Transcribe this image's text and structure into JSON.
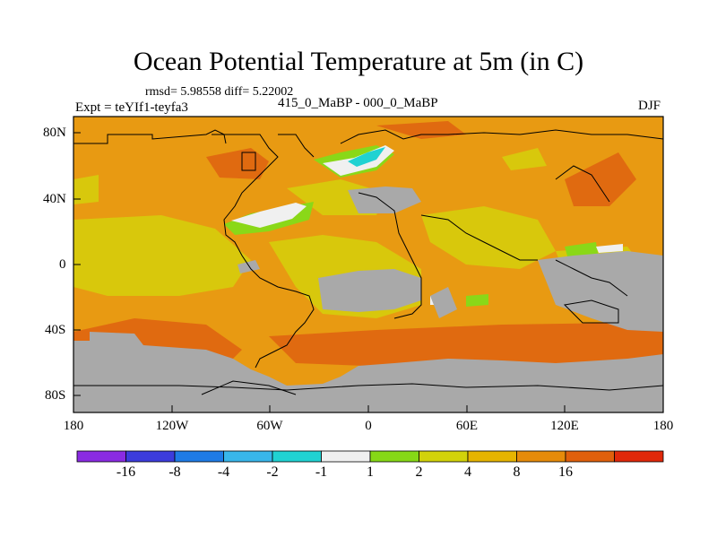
{
  "title": "Ocean Potential Temperature at 5m (in C)",
  "stats": "rmsd= 5.98558 diff= 5.22002",
  "experiment": "Expt = teYIf1-teyfa3",
  "period": "415_0_MaBP - 000_0_MaBP",
  "season": "DJF",
  "map": {
    "y_ticks": [
      "80N",
      "40N",
      "0",
      "40S",
      "80S"
    ],
    "x_ticks": [
      "180",
      "120W",
      "60W",
      "0",
      "60E",
      "120E",
      "180"
    ],
    "lon_range": [
      -180,
      180
    ],
    "lat_range": [
      -90,
      90
    ],
    "land_color": "#a9a9a9",
    "coastline_color": "#000000"
  },
  "colorbar": {
    "colors": [
      "#8a2be2",
      "#3c3cdc",
      "#1e7be6",
      "#38b6ea",
      "#20d2d2",
      "#f0f0f0",
      "#86d816",
      "#d2d20a",
      "#e6b400",
      "#e68b0a",
      "#e0600c",
      "#e0280a"
    ],
    "labels": [
      "-16",
      "-8",
      "-4",
      "-2",
      "-1",
      "1",
      "2",
      "4",
      "8",
      "16"
    ]
  },
  "legend_colors": {
    "background": "#e89a12",
    "warm": "#e06a10",
    "mid": "#d8c80c",
    "green": "#8ad818",
    "white": "#f0f0f0",
    "cyan": "#20d2d2"
  }
}
